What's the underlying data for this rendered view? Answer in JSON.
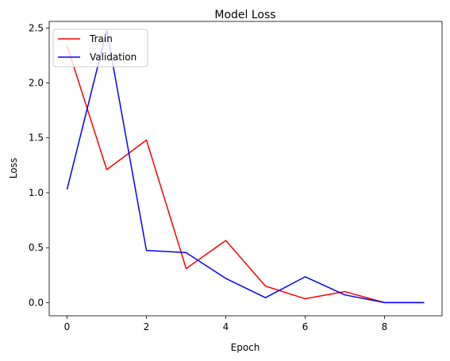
{
  "chart_data": {
    "type": "line",
    "title": "Model Loss",
    "xlabel": "Epoch",
    "ylabel": "Loss",
    "x": [
      0,
      1,
      2,
      3,
      4,
      5,
      6,
      7,
      8,
      9
    ],
    "xlim": [
      -0.45,
      9.45
    ],
    "ylim": [
      -0.12,
      2.56
    ],
    "xticks": [
      0,
      2,
      4,
      6,
      8
    ],
    "yticks": [
      0.0,
      0.5,
      1.0,
      1.5,
      2.0,
      2.5
    ],
    "xtick_labels": [
      "0",
      "2",
      "4",
      "6",
      "8"
    ],
    "ytick_labels": [
      "0.0",
      "0.5",
      "1.0",
      "1.5",
      "2.0",
      "2.5"
    ],
    "grid": false,
    "legend_position": "upper-left",
    "series": [
      {
        "name": "Train",
        "color": "#ff0000",
        "values": [
          2.34,
          1.21,
          1.48,
          0.31,
          0.565,
          0.15,
          0.035,
          0.1,
          0.0,
          0.0
        ]
      },
      {
        "name": "Validation",
        "color": "#0000ff",
        "values": [
          1.03,
          2.48,
          0.475,
          0.455,
          0.22,
          0.045,
          0.235,
          0.07,
          0.0,
          0.0
        ]
      }
    ]
  }
}
